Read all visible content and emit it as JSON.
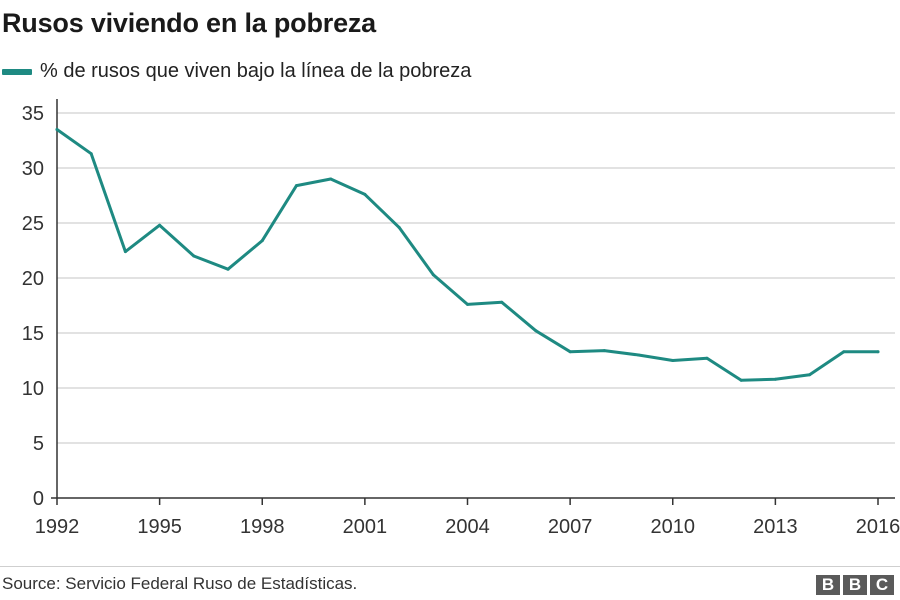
{
  "chart_data": {
    "type": "line",
    "title": "Rusos viviendo en la pobreza",
    "xlabel": "",
    "ylabel": "",
    "xlim": [
      1992,
      2016
    ],
    "ylim": [
      0,
      35
    ],
    "grid": true,
    "legend_position": "top-left",
    "x_ticks": [
      "1992",
      "1995",
      "1998",
      "2001",
      "2004",
      "2007",
      "2010",
      "2013",
      "2016"
    ],
    "y_ticks": [
      "35",
      "30",
      "25",
      "20",
      "15",
      "10",
      "5",
      "0"
    ],
    "x_tick_values": [
      1992,
      1995,
      1998,
      2001,
      2004,
      2007,
      2010,
      2013,
      2016
    ],
    "y_tick_values": [
      35,
      30,
      25,
      20,
      15,
      10,
      5,
      0
    ],
    "series": [
      {
        "name": "% de rusos que viven bajo la línea de la pobreza",
        "color": "#1e8a82",
        "x": [
          1992,
          1993,
          1994,
          1995,
          1996,
          1997,
          1998,
          1999,
          2000,
          2001,
          2002,
          2003,
          2004,
          2005,
          2006,
          2007,
          2008,
          2009,
          2010,
          2011,
          2012,
          2013,
          2014,
          2015,
          2016
        ],
        "values": [
          33.5,
          31.3,
          22.4,
          24.8,
          22.0,
          20.8,
          23.4,
          28.4,
          29.0,
          27.6,
          24.6,
          20.3,
          17.6,
          17.8,
          15.2,
          13.3,
          13.4,
          13.0,
          12.5,
          12.7,
          10.7,
          10.8,
          11.2,
          13.3,
          13.3
        ]
      }
    ]
  },
  "colors": {
    "line": "#1e8a82",
    "grid": "#d9d9d9",
    "axis": "#333333",
    "logo": "#5a5a5a"
  },
  "footer": {
    "source": "Source: Servicio Federal Ruso de Estadísticas.",
    "logo": [
      "B",
      "B",
      "C"
    ]
  }
}
